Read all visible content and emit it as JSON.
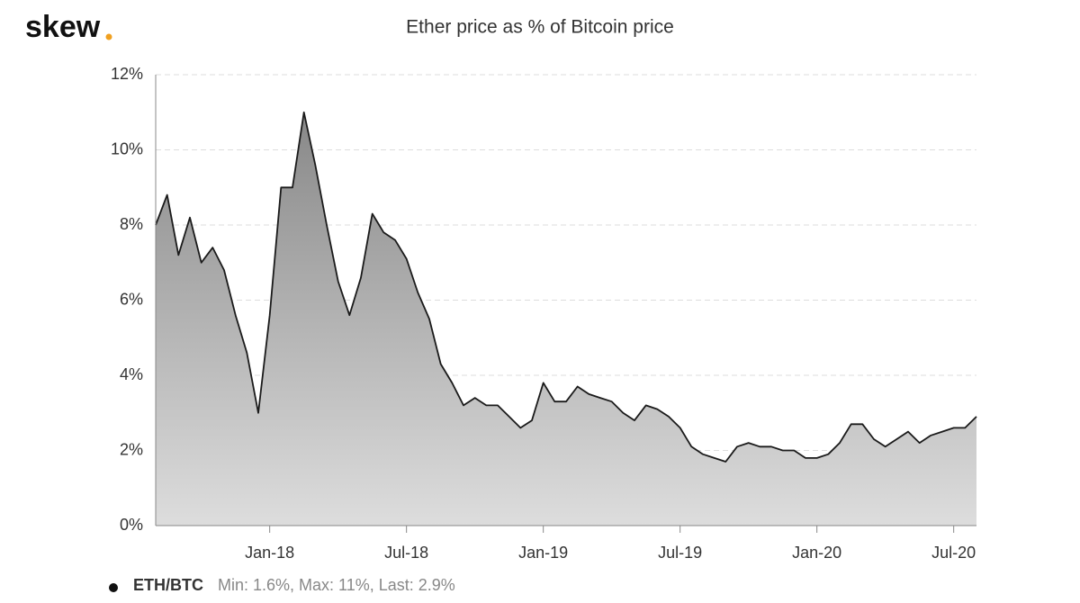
{
  "brand": "skew",
  "chart_data": {
    "type": "area",
    "title": "Ether price as % of Bitcoin price",
    "categories": [
      null,
      null,
      null,
      null,
      null,
      null,
      null,
      null,
      null,
      null,
      "Jan-18",
      null,
      null,
      null,
      null,
      null,
      null,
      null,
      null,
      null,
      null,
      null,
      "Jul-18",
      null,
      null,
      null,
      null,
      null,
      null,
      null,
      null,
      null,
      null,
      null,
      "Jan-19",
      null,
      null,
      null,
      null,
      null,
      null,
      null,
      null,
      null,
      null,
      null,
      "Jul-19",
      null,
      null,
      null,
      null,
      null,
      null,
      null,
      null,
      null,
      null,
      null,
      "Jan-20",
      null,
      null,
      null,
      null,
      null,
      null,
      null,
      null,
      null,
      null,
      null,
      "Jul-20",
      null,
      null
    ],
    "series": [
      {
        "name": "ETH/BTC",
        "color": "#1a1a1a",
        "values": [
          8.0,
          8.8,
          7.2,
          8.2,
          7.0,
          7.4,
          6.8,
          5.6,
          4.6,
          3.0,
          5.6,
          9.0,
          9.0,
          11.0,
          9.6,
          8.0,
          6.5,
          5.6,
          6.6,
          8.3,
          7.8,
          7.6,
          7.1,
          6.2,
          5.5,
          4.3,
          3.8,
          3.2,
          3.4,
          3.2,
          3.2,
          2.9,
          2.6,
          2.8,
          3.8,
          3.3,
          3.3,
          3.7,
          3.5,
          3.4,
          3.3,
          3.0,
          2.8,
          3.2,
          3.1,
          2.9,
          2.6,
          2.1,
          1.9,
          1.8,
          1.7,
          2.1,
          2.2,
          2.1,
          2.1,
          2.0,
          2.0,
          1.8,
          1.8,
          1.9,
          2.2,
          2.7,
          2.7,
          2.3,
          2.1,
          2.3,
          2.5,
          2.2,
          2.4,
          2.5,
          2.6,
          2.6,
          2.9
        ]
      }
    ],
    "legend_stats": "Min: 1.6%, Max: 11%, Last: 2.9%",
    "ylim": [
      0,
      12
    ],
    "yticks": [
      {
        "value": 0,
        "label": "0%"
      },
      {
        "value": 2,
        "label": "2%"
      },
      {
        "value": 4,
        "label": "4%"
      },
      {
        "value": 6,
        "label": "6%"
      },
      {
        "value": 8,
        "label": "8%"
      },
      {
        "value": 10,
        "label": "10%"
      },
      {
        "value": 12,
        "label": "12%"
      }
    ],
    "grid": true
  }
}
